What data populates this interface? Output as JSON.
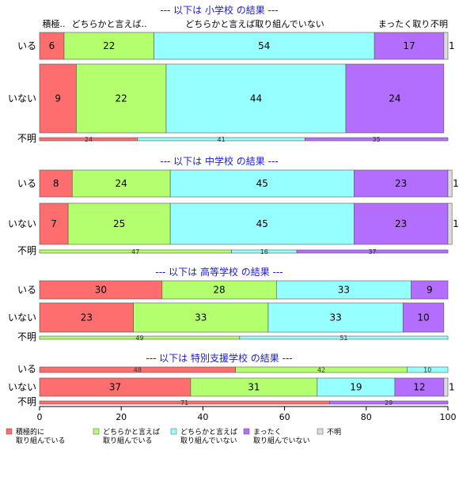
{
  "chart_data": {
    "type": "bar",
    "orientation": "horizontal",
    "stacked": true,
    "percent": true,
    "xlim": [
      0,
      100
    ],
    "xticks": [
      0,
      20,
      40,
      60,
      80,
      100
    ],
    "header_labels": [
      "積極..",
      "どちらかと言えば..",
      "どちらかと言えば取り組んでいない",
      "まったく取り..",
      "不明"
    ],
    "categories": [
      "積極的に\n取り組んでいる",
      "どちらかと言えば\n取り組んでいる",
      "どちらかと言えば\n取り組んでいない",
      "まったく\n取り組んでいない",
      "不明"
    ],
    "colors": [
      "#ff6e6e",
      "#b4ff6e",
      "#96ffff",
      "#b46eff",
      "#dcdcdc"
    ],
    "sections": [
      {
        "title": "--- 以下は 小学校 の結果 ---",
        "rows": [
          {
            "label": "いる",
            "values": [
              6,
              22,
              54,
              17,
              1
            ]
          },
          {
            "label": "いない",
            "values": [
              9,
              22,
              44,
              24,
              0
            ]
          },
          {
            "label": "不明",
            "values": [
              24,
              0,
              41,
              35,
              0
            ],
            "thin": true
          }
        ]
      },
      {
        "title": "--- 以下は 中学校 の結果 ---",
        "rows": [
          {
            "label": "いる",
            "values": [
              8,
              24,
              45,
              23,
              1
            ]
          },
          {
            "label": "いない",
            "values": [
              7,
              25,
              45,
              23,
              1
            ]
          },
          {
            "label": "不明",
            "values": [
              0,
              47,
              16,
              37,
              0
            ],
            "thin": true
          }
        ]
      },
      {
        "title": "--- 以下は 高等学校 の結果 ---",
        "rows": [
          {
            "label": "いる",
            "values": [
              30,
              28,
              33,
              9,
              0
            ]
          },
          {
            "label": "いない",
            "values": [
              23,
              33,
              33,
              10,
              0
            ]
          },
          {
            "label": "不明",
            "values": [
              0,
              49,
              51,
              0,
              0
            ],
            "thin": true
          }
        ]
      },
      {
        "title": "--- 以下は 特別支援学校 の結果 ---",
        "rows": [
          {
            "label": "いる",
            "values": [
              48,
              42,
              10,
              0,
              0
            ],
            "thin": true
          },
          {
            "label": "いない",
            "values": [
              37,
              31,
              19,
              12,
              1
            ]
          },
          {
            "label": "不明",
            "values": [
              71,
              0,
              0,
              29,
              0
            ],
            "thin": true
          }
        ]
      }
    ]
  }
}
